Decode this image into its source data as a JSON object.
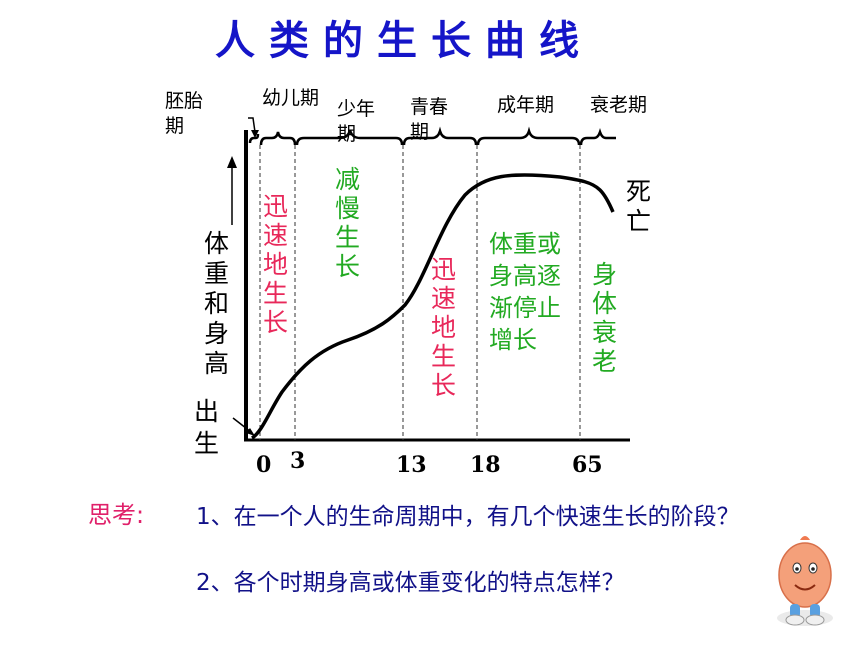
{
  "title": "人类的生长曲线",
  "stages": {
    "embryo": [
      "胚胎",
      "期"
    ],
    "infant": "幼儿期",
    "childhood": [
      "少年",
      "期"
    ],
    "adolescence": [
      "青春",
      "期"
    ],
    "adulthood": "成年期",
    "old_age": "衰老期"
  },
  "axis": {
    "ylabel": [
      "体",
      "重",
      "和",
      "身",
      "高"
    ],
    "birth": [
      "出",
      "生"
    ],
    "ticks": [
      "0",
      "3",
      "13",
      "18",
      "65"
    ]
  },
  "annotations": {
    "rapid1": [
      "迅",
      "速",
      "地",
      "生",
      "长"
    ],
    "slow": [
      "减",
      "慢",
      "生",
      "长"
    ],
    "rapid2": [
      "迅",
      "速",
      "地",
      "生",
      "长"
    ],
    "adult": [
      "体重或",
      "身高逐",
      "渐停止",
      "增长"
    ],
    "aging": [
      "身",
      "体",
      "衰",
      "老"
    ],
    "death": [
      "死",
      "亡"
    ]
  },
  "colors": {
    "title": "#1515c8",
    "red": "#e8285a",
    "green": "#22aa22",
    "blue": "#111188"
  },
  "question": {
    "label": "思考:",
    "q1": "1、在一个人的生命周期中，有几个快速生长的阶段？",
    "q2": "2、各个时期身高或体重变化的特点怎样？"
  }
}
